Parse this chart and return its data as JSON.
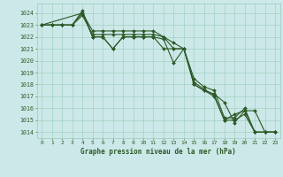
{
  "title": "Graphe pression niveau de la mer (hPa)",
  "background_color": "#cce8e8",
  "grid_color": "#99ccbb",
  "line_color": "#2d5a27",
  "marker_color": "#2d5a27",
  "xlim": [
    -0.5,
    23.5
  ],
  "ylim": [
    1013.5,
    1024.8
  ],
  "yticks": [
    1014,
    1015,
    1016,
    1017,
    1018,
    1019,
    1020,
    1021,
    1022,
    1023,
    1024
  ],
  "xticks": [
    0,
    1,
    2,
    3,
    4,
    5,
    6,
    7,
    8,
    9,
    10,
    11,
    12,
    13,
    14,
    15,
    16,
    17,
    18,
    19,
    20,
    21,
    22,
    23
  ],
  "series": [
    {
      "x": [
        0,
        1,
        2,
        3,
        4,
        5,
        6,
        7,
        8,
        9,
        10,
        11,
        12,
        13,
        14,
        15,
        16,
        17,
        18,
        19,
        20,
        21,
        22,
        23
      ],
      "y": [
        1023.0,
        1023.0,
        1023.0,
        1023.0,
        1024.2,
        1022.0,
        1022.0,
        1021.0,
        1022.0,
        1022.0,
        1022.0,
        1022.0,
        1021.0,
        1021.0,
        1021.0,
        1018.5,
        1017.8,
        1017.5,
        1015.2,
        1015.2,
        1016.0,
        1014.0,
        1014.0,
        1014.0
      ]
    },
    {
      "x": [
        0,
        1,
        2,
        3,
        4,
        5,
        6,
        7,
        8,
        9,
        10,
        11,
        12,
        13,
        14,
        15,
        16,
        17,
        18,
        19,
        20,
        21,
        22,
        23
      ],
      "y": [
        1023.0,
        1023.0,
        1023.0,
        1023.0,
        1024.0,
        1022.5,
        1022.5,
        1022.5,
        1022.5,
        1022.5,
        1022.5,
        1022.5,
        1022.0,
        1021.5,
        1021.0,
        1018.0,
        1017.5,
        1017.0,
        1015.0,
        1015.0,
        1015.5,
        1014.0,
        1014.0,
        1014.0
      ]
    },
    {
      "x": [
        0,
        4,
        5,
        6,
        7,
        8,
        9,
        10,
        11,
        12,
        13,
        14,
        15,
        16,
        17,
        18,
        19,
        20,
        21,
        22,
        23
      ],
      "y": [
        1023.0,
        1024.0,
        1022.0,
        1022.0,
        1021.0,
        1022.0,
        1022.0,
        1022.0,
        1022.0,
        1021.8,
        1019.8,
        1021.0,
        1018.0,
        1017.5,
        1017.2,
        1016.5,
        1014.8,
        1015.8,
        1015.8,
        1014.0,
        1014.0
      ]
    },
    {
      "x": [
        0,
        1,
        2,
        3,
        4,
        5,
        6,
        7,
        8,
        9,
        10,
        11,
        12,
        13,
        14,
        15,
        16,
        17,
        18,
        19,
        20,
        21,
        22,
        23
      ],
      "y": [
        1023.0,
        1023.0,
        1023.0,
        1023.0,
        1023.8,
        1022.2,
        1022.2,
        1022.2,
        1022.2,
        1022.2,
        1022.2,
        1022.2,
        1022.0,
        1021.0,
        1021.0,
        1018.2,
        1017.6,
        1017.1,
        1015.0,
        1015.5,
        1015.8,
        1014.0,
        1014.0,
        1014.0
      ]
    }
  ]
}
